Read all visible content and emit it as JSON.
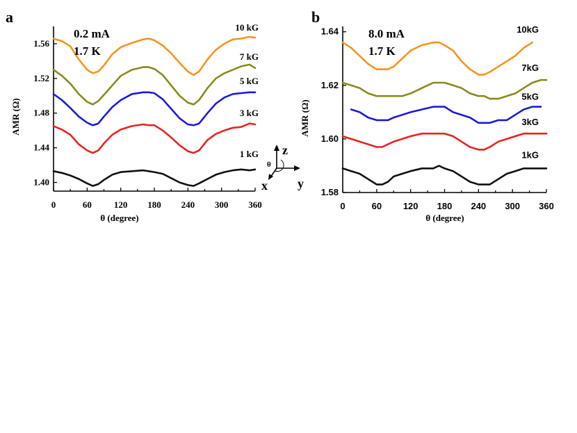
{
  "chart_data": [
    {
      "panel": "a",
      "type": "line",
      "condition_current": "0.2 mA",
      "condition_temp": "1.7 K",
      "xlabel": "θ (degree)",
      "ylabel": "AMR  (Ω)",
      "xlim": [
        0,
        360
      ],
      "ylim": [
        1.39,
        1.58
      ],
      "xticks": [
        "0",
        "60",
        "120",
        "180",
        "240",
        "300",
        "360"
      ],
      "yticks": [
        "1.40",
        "1.44",
        "1.48",
        "1.52",
        "1.56"
      ],
      "x": [
        0,
        15,
        30,
        45,
        60,
        70,
        80,
        90,
        105,
        120,
        140,
        160,
        170,
        180,
        195,
        210,
        225,
        240,
        250,
        260,
        275,
        290,
        305,
        320,
        335,
        350,
        360
      ],
      "series": [
        {
          "name": "10 kG",
          "color": "#f7941d",
          "values": [
            1.566,
            1.563,
            1.557,
            1.542,
            1.53,
            1.526,
            1.528,
            1.535,
            1.548,
            1.556,
            1.561,
            1.565,
            1.566,
            1.564,
            1.558,
            1.549,
            1.538,
            1.528,
            1.524,
            1.528,
            1.542,
            1.553,
            1.56,
            1.565,
            1.566,
            1.568,
            1.567
          ]
        },
        {
          "name": "7 kG",
          "color": "#8a8a1b",
          "values": [
            1.53,
            1.523,
            1.514,
            1.502,
            1.493,
            1.49,
            1.494,
            1.501,
            1.512,
            1.523,
            1.53,
            1.533,
            1.533,
            1.531,
            1.524,
            1.512,
            1.5,
            1.492,
            1.49,
            1.495,
            1.509,
            1.52,
            1.526,
            1.53,
            1.534,
            1.536,
            1.532
          ]
        },
        {
          "name": "5 kG",
          "color": "#1a1adc",
          "values": [
            1.502,
            1.495,
            1.486,
            1.476,
            1.469,
            1.466,
            1.468,
            1.476,
            1.487,
            1.495,
            1.502,
            1.504,
            1.504,
            1.503,
            1.496,
            1.485,
            1.474,
            1.467,
            1.466,
            1.468,
            1.48,
            1.491,
            1.498,
            1.502,
            1.503,
            1.504,
            1.504
          ]
        },
        {
          "name": "3 kG",
          "color": "#e8231f",
          "values": [
            1.465,
            1.461,
            1.455,
            1.444,
            1.437,
            1.434,
            1.437,
            1.445,
            1.455,
            1.461,
            1.465,
            1.467,
            1.466,
            1.466,
            1.46,
            1.452,
            1.443,
            1.436,
            1.434,
            1.437,
            1.449,
            1.456,
            1.46,
            1.463,
            1.464,
            1.468,
            1.467
          ]
        },
        {
          "name": "1 kG",
          "color": "#111111",
          "values": [
            1.413,
            1.411,
            1.408,
            1.404,
            1.399,
            1.396,
            1.398,
            1.403,
            1.409,
            1.412,
            1.413,
            1.414,
            1.413,
            1.412,
            1.41,
            1.405,
            1.4,
            1.397,
            1.396,
            1.399,
            1.404,
            1.409,
            1.412,
            1.414,
            1.415,
            1.414,
            1.415
          ]
        }
      ]
    },
    {
      "panel": "b",
      "type": "line",
      "condition_current": "8.0 mA",
      "condition_temp": "1.7 K",
      "xlabel": "θ (degree)",
      "ylabel": "AMR  (Ω)",
      "xlim": [
        0,
        360
      ],
      "ylim": [
        1.58,
        1.642
      ],
      "xticks": [
        "0",
        "60",
        "120",
        "180",
        "240",
        "300",
        "360"
      ],
      "yticks": [
        "1.58",
        "1.60",
        "1.62",
        "1.64"
      ],
      "x": [
        0,
        15,
        30,
        45,
        60,
        70,
        80,
        90,
        105,
        120,
        140,
        160,
        170,
        180,
        195,
        210,
        225,
        240,
        250,
        260,
        275,
        290,
        305,
        320,
        335,
        350,
        360
      ],
      "series": [
        {
          "name": "10kG",
          "color": "#f7941d",
          "values": [
            1.636,
            1.634,
            1.631,
            1.628,
            1.626,
            1.626,
            1.626,
            1.627,
            1.63,
            1.633,
            1.635,
            1.636,
            1.636,
            1.635,
            1.633,
            1.629,
            1.626,
            1.624,
            1.624,
            1.625,
            1.627,
            1.629,
            1.631,
            1.634,
            1.636,
            null,
            null
          ]
        },
        {
          "name": "7kG",
          "color": "#8a8a1b",
          "values": [
            1.621,
            1.62,
            1.619,
            1.617,
            1.616,
            1.616,
            1.616,
            1.616,
            1.616,
            1.617,
            1.619,
            1.621,
            1.621,
            1.621,
            1.62,
            1.619,
            1.617,
            1.616,
            1.616,
            1.615,
            1.615,
            1.616,
            1.617,
            1.619,
            1.621,
            1.622,
            1.622
          ]
        },
        {
          "name": "5kG",
          "color": "#1a1adc",
          "values": [
            null,
            1.611,
            1.61,
            1.608,
            1.607,
            1.607,
            1.607,
            1.608,
            1.609,
            1.61,
            1.611,
            1.612,
            1.612,
            1.612,
            1.61,
            1.609,
            1.608,
            1.606,
            1.606,
            1.606,
            1.607,
            1.607,
            1.609,
            1.611,
            1.612,
            1.612,
            null
          ]
        },
        {
          "name": "3kG",
          "color": "#e8231f",
          "values": [
            1.601,
            1.6,
            1.599,
            1.598,
            1.597,
            1.597,
            1.598,
            1.599,
            1.6,
            1.601,
            1.602,
            1.602,
            1.602,
            1.602,
            1.601,
            1.599,
            1.597,
            1.596,
            1.596,
            1.597,
            1.599,
            1.6,
            1.601,
            1.602,
            1.602,
            1.602,
            1.602
          ]
        },
        {
          "name": "1kG",
          "color": "#111111",
          "values": [
            1.589,
            1.588,
            1.587,
            1.585,
            1.583,
            1.583,
            1.584,
            1.586,
            1.587,
            1.588,
            1.589,
            1.589,
            1.59,
            1.589,
            1.588,
            1.586,
            1.584,
            1.583,
            1.583,
            1.583,
            1.585,
            1.587,
            1.588,
            1.589,
            1.589,
            1.589,
            1.589
          ]
        }
      ]
    }
  ],
  "coordinate_axes": {
    "x_label": "x",
    "y_label": "y",
    "z_label": "z",
    "theta_label": "θ"
  }
}
